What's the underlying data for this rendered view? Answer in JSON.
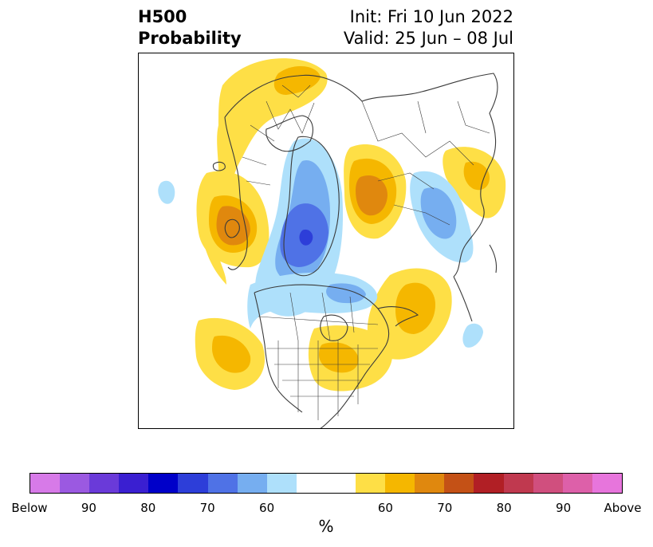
{
  "title": {
    "left_line1": "H500",
    "left_line2": "Probability",
    "right_line1": "Init: Fri 10 Jun 2022",
    "right_line2": "Valid: 25 Jun – 08 Jul"
  },
  "colorbar": {
    "unit": "%",
    "colors": [
      "#d77ae8",
      "#9b59e1",
      "#6a3ad9",
      "#3a1fd1",
      "#0000c9",
      "#2d3ed9",
      "#4f72e6",
      "#76aef0",
      "#aee0fb",
      "#ffffff",
      "#ffffff",
      "#fedf46",
      "#f5b700",
      "#e0880e",
      "#c45116",
      "#b11f25",
      "#c0394f",
      "#d04f7e",
      "#dd60a9",
      "#e775dc"
    ],
    "tick_labels": [
      "Below",
      "90",
      "80",
      "70",
      "60",
      "60",
      "70",
      "80",
      "90",
      "Above"
    ]
  },
  "map": {
    "line_color": "#3a3a3a",
    "colors": {
      "above_60": "#fedf46",
      "above_65": "#f5b700",
      "above_70": "#e0880e",
      "below_60": "#aee0fb",
      "below_65": "#76aef0",
      "below_70": "#4f72e6",
      "below_75": "#2d3ed9"
    }
  }
}
